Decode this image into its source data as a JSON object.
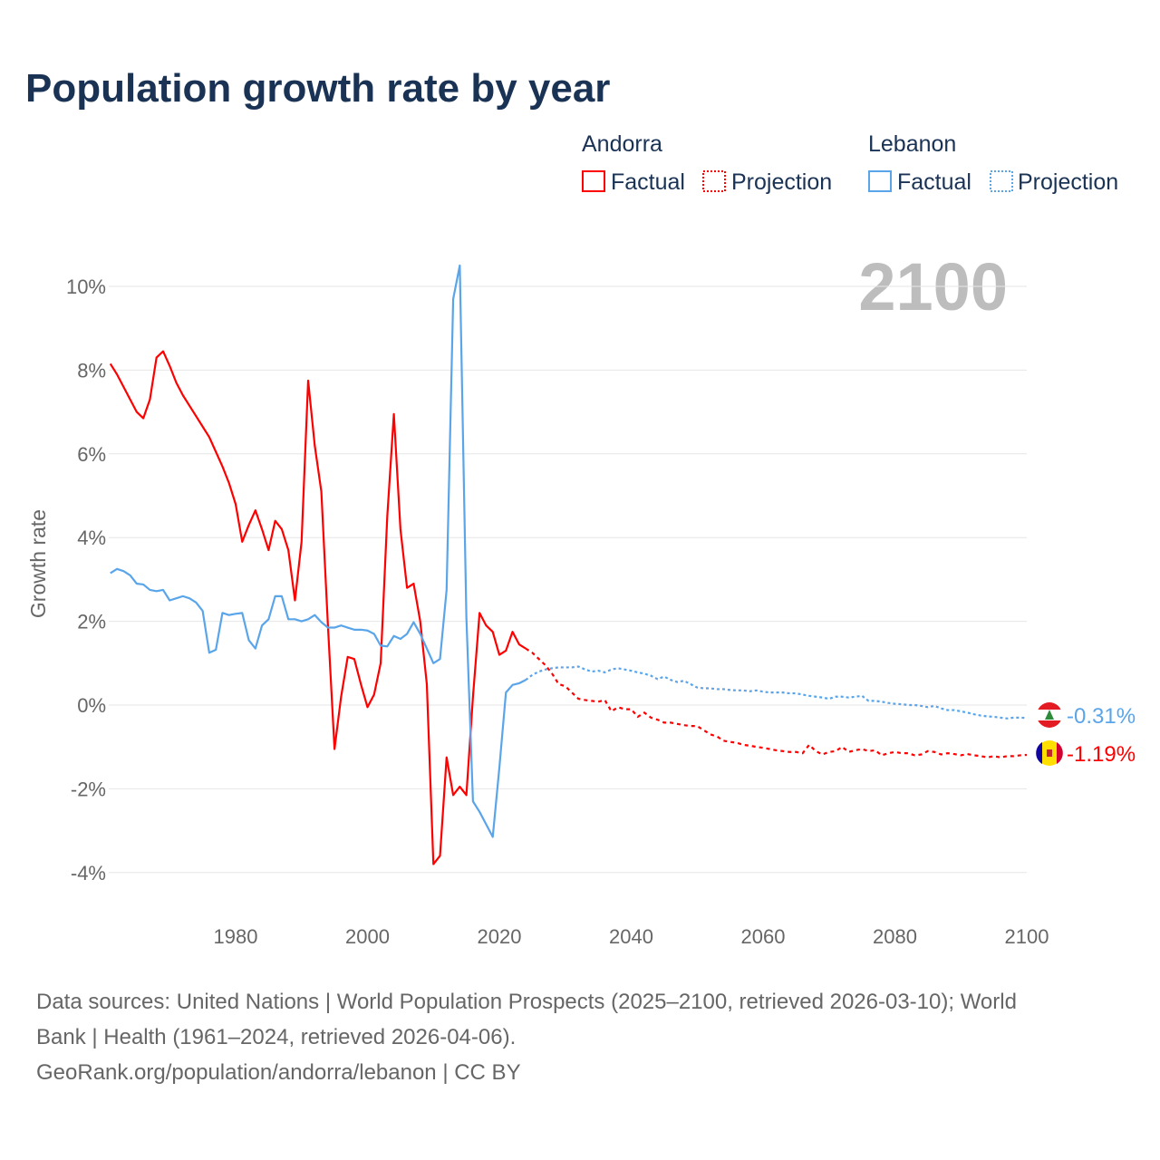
{
  "chart_data": {
    "type": "line",
    "title": "Population growth rate by year",
    "ylabel": "Growth rate",
    "xlabel": "",
    "xlim": [
      1961,
      2100
    ],
    "ylim": [
      -4.5,
      10.5
    ],
    "x_ticks": [
      1980,
      2000,
      2020,
      2040,
      2060,
      2080,
      2100
    ],
    "y_ticks": [
      -4,
      -2,
      0,
      2,
      4,
      6,
      8,
      10
    ],
    "y_tick_labels": [
      "-4%",
      "-2%",
      "0%",
      "2%",
      "4%",
      "6%",
      "8%",
      "10%"
    ],
    "current_year_label": "2100",
    "legend": {
      "groups": [
        {
          "name": "Andorra",
          "factual": "Factual",
          "projection": "Projection"
        },
        {
          "name": "Lebanon",
          "factual": "Factual",
          "projection": "Projection"
        }
      ],
      "placement": "top-right"
    },
    "series": [
      {
        "name": "Andorra",
        "color": "#ff0000",
        "end_label": "-1.19%",
        "factual_start": 1961,
        "factual": [
          8.15,
          7.9,
          7.6,
          7.3,
          7.0,
          6.85,
          7.3,
          8.3,
          8.45,
          8.1,
          7.7,
          7.4,
          7.15,
          6.9,
          6.65,
          6.4,
          6.05,
          5.7,
          5.3,
          4.8,
          3.9,
          4.3,
          4.65,
          4.2,
          3.7,
          4.4,
          4.2,
          3.7,
          2.5,
          3.9,
          7.75,
          6.2,
          5.1,
          1.9,
          -1.05,
          0.2,
          1.15,
          1.1,
          0.5,
          -0.05,
          0.25,
          1.0,
          4.5,
          6.95,
          4.2,
          2.8,
          2.9,
          2.0,
          0.5,
          -3.8,
          -3.6,
          -1.25,
          -2.15,
          -1.95,
          -2.15,
          0.2,
          2.2,
          1.9,
          1.75,
          1.2,
          1.3,
          1.75,
          1.45,
          1.35
        ],
        "projection_start": 2025,
        "projection": [
          1.25,
          1.1,
          0.95,
          0.75,
          0.5,
          0.45,
          0.3,
          0.15,
          0.12,
          0.1,
          0.08,
          0.12,
          -0.15,
          -0.05,
          -0.1,
          -0.1,
          -0.28,
          -0.18,
          -0.3,
          -0.35,
          -0.42,
          -0.42,
          -0.45,
          -0.48,
          -0.5,
          -0.5,
          -0.6,
          -0.7,
          -0.75,
          -0.85,
          -0.88,
          -0.9,
          -0.95,
          -0.97,
          -1.0,
          -1.02,
          -1.05,
          -1.08,
          -1.1,
          -1.12,
          -1.12,
          -1.15,
          -0.95,
          -1.1,
          -1.18,
          -1.12,
          -1.1,
          -1.0,
          -1.12,
          -1.08,
          -1.05,
          -1.1,
          -1.08,
          -1.2,
          -1.15,
          -1.12,
          -1.15,
          -1.15,
          -1.2,
          -1.18,
          -1.1,
          -1.12,
          -1.18,
          -1.15,
          -1.17,
          -1.2,
          -1.17,
          -1.2,
          -1.22,
          -1.25,
          -1.22,
          -1.25,
          -1.22,
          -1.22,
          -1.2,
          -1.19
        ]
      },
      {
        "name": "Lebanon",
        "color": "#5aa5ea",
        "end_label": "-0.31%",
        "factual_start": 1961,
        "factual": [
          3.15,
          3.25,
          3.2,
          3.1,
          2.9,
          2.88,
          2.75,
          2.72,
          2.75,
          2.5,
          2.55,
          2.6,
          2.55,
          2.45,
          2.25,
          1.25,
          1.32,
          2.2,
          2.15,
          2.18,
          2.2,
          1.55,
          1.35,
          1.9,
          2.05,
          2.6,
          2.6,
          2.05,
          2.05,
          2.0,
          2.05,
          2.15,
          1.98,
          1.85,
          1.85,
          1.9,
          1.85,
          1.8,
          1.8,
          1.78,
          1.7,
          1.42,
          1.4,
          1.65,
          1.58,
          1.7,
          1.98,
          1.7,
          1.35,
          1.0,
          1.1,
          2.75,
          9.7,
          10.5,
          2.1,
          -2.3,
          -2.55,
          -2.85,
          -3.15,
          -1.5,
          0.3,
          0.48,
          0.52,
          0.6
        ],
        "projection_start": 2025,
        "projection": [
          0.72,
          0.8,
          0.85,
          0.88,
          0.9,
          0.9,
          0.9,
          0.92,
          0.85,
          0.8,
          0.82,
          0.78,
          0.85,
          0.88,
          0.85,
          0.82,
          0.78,
          0.75,
          0.7,
          0.62,
          0.68,
          0.6,
          0.55,
          0.58,
          0.5,
          0.42,
          0.4,
          0.4,
          0.38,
          0.38,
          0.36,
          0.35,
          0.35,
          0.33,
          0.35,
          0.32,
          0.3,
          0.3,
          0.3,
          0.28,
          0.28,
          0.25,
          0.22,
          0.2,
          0.18,
          0.15,
          0.2,
          0.2,
          0.18,
          0.2,
          0.22,
          0.1,
          0.1,
          0.08,
          0.05,
          0.03,
          0.02,
          0.0,
          0.0,
          -0.02,
          -0.05,
          -0.02,
          -0.08,
          -0.12,
          -0.12,
          -0.15,
          -0.18,
          -0.22,
          -0.25,
          -0.27,
          -0.28,
          -0.3,
          -0.32,
          -0.3,
          -0.3,
          -0.31
        ]
      }
    ]
  },
  "footer": {
    "line1": "Data sources: United Nations | World Population Prospects (2025–2100, retrieved 2026-03-10); World",
    "line2": "Bank | Health (1961–2024, retrieved 2026-04-06).",
    "line3": "GeoRank.org/population/andorra/lebanon | CC BY"
  }
}
